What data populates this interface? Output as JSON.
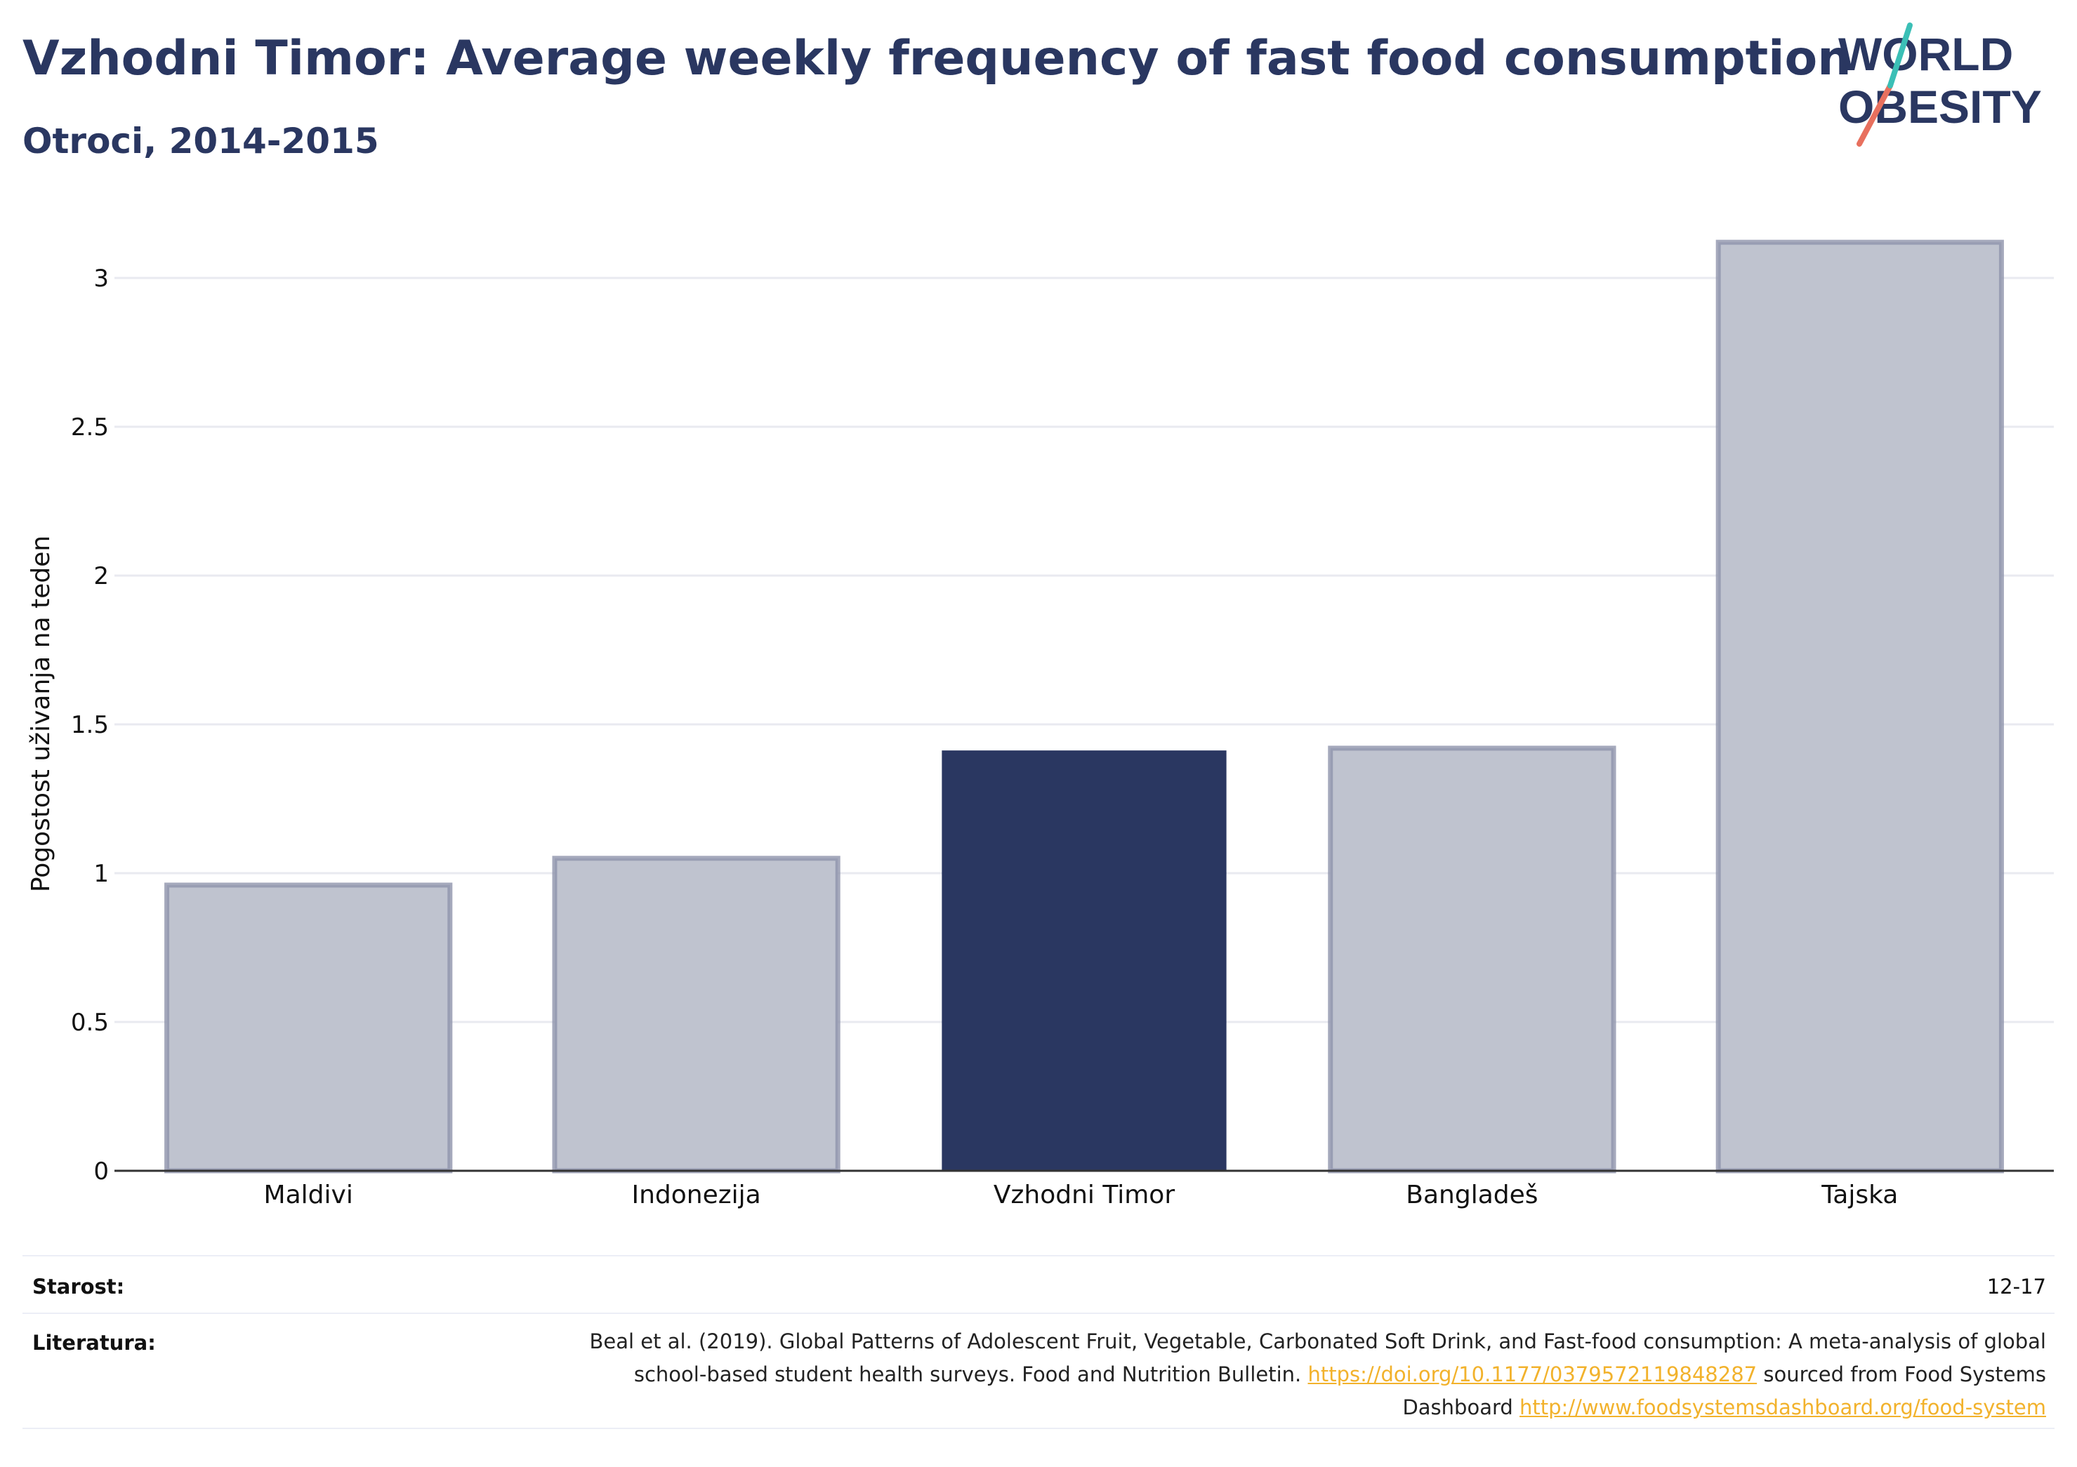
{
  "header": {
    "title": "Vzhodni Timor: Average weekly frequency of fast food consumption",
    "subtitle": "Otroci, 2014-2015"
  },
  "logo": {
    "line1": "WORLD",
    "line2": "OBESITY"
  },
  "chart_data": {
    "type": "bar",
    "categories": [
      "Maldivi",
      "Indonezija",
      "Vzhodni Timor",
      "Bangladeš",
      "Tajska"
    ],
    "values": [
      0.96,
      1.05,
      1.41,
      1.42,
      3.12
    ],
    "highlight": "Vzhodni Timor",
    "ylabel": "Pogostost uživanja na teden",
    "xlabel": "",
    "ylim": [
      0,
      3.2
    ],
    "yticks": [
      0,
      0.5,
      1,
      1.5,
      2,
      2.5,
      3
    ],
    "ytick_labels": [
      "0",
      "0.5",
      "1",
      "1.5",
      "2",
      "2.5",
      "3"
    ],
    "grid": true,
    "colors": {
      "highlight": "#2a3761",
      "muted_fill": "#bfc3cf",
      "muted_stroke": "#8e94ab",
      "grid": "#e9eaf0"
    }
  },
  "footer": {
    "age_label": "Starost:",
    "age_value": "12-17",
    "ref_label": "Literatura:",
    "ref_text_1": "Beal et al. (2019). Global Patterns of Adolescent Fruit, Vegetable, Carbonated Soft Drink, and Fast-food consumption: A meta-analysis of global school-based student health surveys. Food and Nutrition Bulletin.",
    "ref_link_1": "https://doi.org/10.1177/0379572119848287",
    "ref_text_2": "sourced from Food Systems Dashboard",
    "ref_link_2": "http://www.foodsystemsdashboard.org/food-system"
  }
}
